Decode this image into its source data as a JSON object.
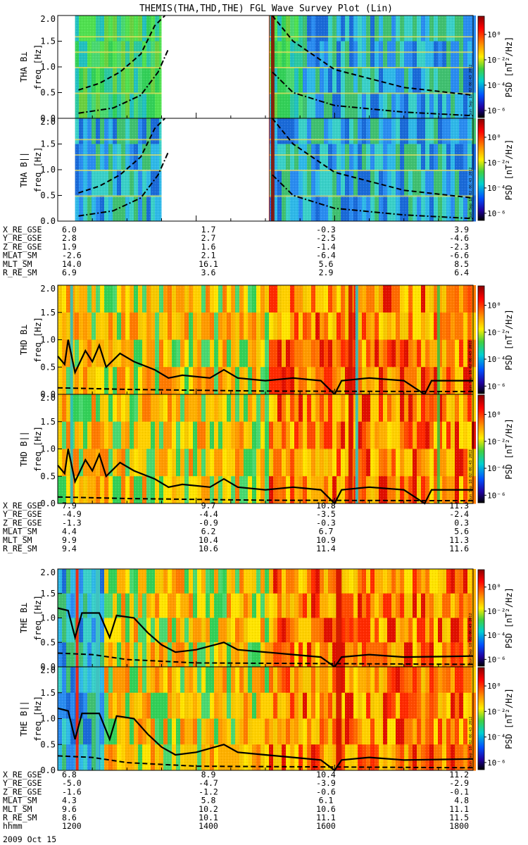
{
  "title": "THEMIS(THA,THD,THE) FGL Wave Survey Plot (Lin)",
  "date_label": "2009 Oct 15",
  "colorbar_label": "PSD [nT²/Hz]",
  "colorbar_ticks": [
    "10⁰",
    "10⁻²",
    "10⁻⁴",
    "10⁻⁶"
  ],
  "stamp": "Sun Sep 18 02:06:43 2012",
  "colors": {
    "cb_top": "#8b0000",
    "cb_mid": "#ffd400",
    "cb_low": "#0000b0",
    "cb_bottom": "#000000"
  },
  "chart_data": [
    {
      "type": "heatmap",
      "name": "THA",
      "panels": [
        {
          "label": "THA B⊥",
          "ylabel": "freq [Hz]"
        },
        {
          "label": "THA B||",
          "ylabel": "freq [Hz]"
        }
      ],
      "yticks": [
        "0.0",
        "0.5",
        "1.0",
        "1.5",
        "2.0"
      ],
      "ylim": [
        0,
        2
      ],
      "xlim": [
        1200,
        1800
      ],
      "data_gaps": [
        [
          1200,
          1225
        ],
        [
          1350,
          1505
        ]
      ],
      "lines": [
        {
          "style": "dashed",
          "points": [
            [
              1230,
              0.55
            ],
            [
              1260,
              0.68
            ],
            [
              1290,
              0.9
            ],
            [
              1320,
              1.25
            ],
            [
              1340,
              1.8
            ],
            [
              1355,
              2.0
            ]
          ]
        },
        {
          "style": "dash-dot",
          "points": [
            [
              1230,
              0.1
            ],
            [
              1280,
              0.2
            ],
            [
              1320,
              0.45
            ],
            [
              1345,
              0.9
            ],
            [
              1360,
              1.35
            ]
          ]
        },
        {
          "style": "dashed",
          "points": [
            [
              1510,
              2.0
            ],
            [
              1540,
              1.5
            ],
            [
              1600,
              0.95
            ],
            [
              1700,
              0.6
            ],
            [
              1800,
              0.45
            ]
          ]
        },
        {
          "style": "dash-dot",
          "points": [
            [
              1510,
              0.9
            ],
            [
              1540,
              0.5
            ],
            [
              1600,
              0.25
            ],
            [
              1700,
              0.12
            ],
            [
              1800,
              0.05
            ]
          ]
        }
      ],
      "ephemeris": [
        {
          "label": "X_RE_GSE",
          "values": [
            "6.0",
            "1.7",
            "-0.3",
            "3.9"
          ]
        },
        {
          "label": "Y_RE_GSE",
          "values": [
            "2.8",
            "2.7",
            "-2.5",
            "-4.6"
          ]
        },
        {
          "label": "Z_RE_GSE",
          "values": [
            "1.9",
            "1.6",
            "-1.4",
            "-2.3"
          ]
        },
        {
          "label": "MLAT_SM",
          "values": [
            "-2.6",
            "2.1",
            "-6.4",
            "-6.6"
          ]
        },
        {
          "label": "MLT_SM",
          "values": [
            "14.0",
            "16.1",
            "5.6",
            "8.5"
          ]
        },
        {
          "label": "R_RE_SM",
          "values": [
            "6.9",
            "3.6",
            "2.9",
            "6.4"
          ]
        }
      ]
    },
    {
      "type": "heatmap",
      "name": "THD",
      "panels": [
        {
          "label": "THD B⊥",
          "ylabel": "freq [Hz]"
        },
        {
          "label": "THD B||",
          "ylabel": "freq [Hz]"
        }
      ],
      "yticks": [
        "0.0",
        "0.5",
        "1.0",
        "1.5",
        "2.0"
      ],
      "ylim": [
        0,
        2
      ],
      "xlim": [
        1200,
        1800
      ],
      "lines": [
        {
          "style": "solid",
          "points": [
            [
              1200,
              0.7
            ],
            [
              1210,
              0.55
            ],
            [
              1215,
              1.0
            ],
            [
              1225,
              0.4
            ],
            [
              1240,
              0.8
            ],
            [
              1250,
              0.6
            ],
            [
              1260,
              0.9
            ],
            [
              1270,
              0.5
            ],
            [
              1290,
              0.75
            ],
            [
              1310,
              0.6
            ],
            [
              1340,
              0.45
            ],
            [
              1360,
              0.3
            ],
            [
              1380,
              0.35
            ],
            [
              1420,
              0.3
            ],
            [
              1440,
              0.45
            ],
            [
              1460,
              0.3
            ],
            [
              1500,
              0.25
            ],
            [
              1540,
              0.3
            ],
            [
              1580,
              0.25
            ],
            [
              1600,
              0.0
            ],
            [
              1610,
              0.25
            ],
            [
              1650,
              0.3
            ],
            [
              1700,
              0.25
            ],
            [
              1730,
              0.0
            ],
            [
              1740,
              0.25
            ],
            [
              1800,
              0.25
            ]
          ]
        },
        {
          "style": "dashed",
          "points": [
            [
              1200,
              0.12
            ],
            [
              1300,
              0.09
            ],
            [
              1500,
              0.06
            ],
            [
              1800,
              0.05
            ]
          ]
        }
      ],
      "ephemeris": [
        {
          "label": "X_RE_GSE",
          "values": [
            "7.9",
            "9.7",
            "10.8",
            "11.3"
          ]
        },
        {
          "label": "Y_RE_GSE",
          "values": [
            "-4.9",
            "-4.4",
            "-3.5",
            "-2.4"
          ]
        },
        {
          "label": "Z_RE_GSE",
          "values": [
            "-1.3",
            "-0.9",
            "-0.3",
            "0.3"
          ]
        },
        {
          "label": "MLAT_SM",
          "values": [
            "4.4",
            "6.2",
            "6.7",
            "5.6"
          ]
        },
        {
          "label": "MLT_SM",
          "values": [
            "9.9",
            "10.4",
            "10.9",
            "11.3"
          ]
        },
        {
          "label": "R_RE_SM",
          "values": [
            "9.4",
            "10.6",
            "11.4",
            "11.6"
          ]
        }
      ]
    },
    {
      "type": "heatmap",
      "name": "THE",
      "panels": [
        {
          "label": "THE B⊥",
          "ylabel": "freq [Hz]"
        },
        {
          "label": "THE B||",
          "ylabel": "freq [Hz]"
        }
      ],
      "yticks": [
        "0.0",
        "0.5",
        "1.0",
        "1.5",
        "2.0"
      ],
      "ylim": [
        0,
        2
      ],
      "xlim": [
        1200,
        1800
      ],
      "lines": [
        {
          "style": "solid",
          "points": [
            [
              1200,
              1.2
            ],
            [
              1215,
              1.15
            ],
            [
              1225,
              0.6
            ],
            [
              1235,
              1.1
            ],
            [
              1260,
              1.1
            ],
            [
              1275,
              0.6
            ],
            [
              1285,
              1.05
            ],
            [
              1310,
              1.0
            ],
            [
              1330,
              0.7
            ],
            [
              1350,
              0.45
            ],
            [
              1370,
              0.3
            ],
            [
              1400,
              0.35
            ],
            [
              1440,
              0.5
            ],
            [
              1460,
              0.35
            ],
            [
              1500,
              0.3
            ],
            [
              1540,
              0.25
            ],
            [
              1580,
              0.2
            ],
            [
              1600,
              0.0
            ],
            [
              1610,
              0.2
            ],
            [
              1650,
              0.25
            ],
            [
              1700,
              0.2
            ],
            [
              1800,
              0.22
            ]
          ]
        },
        {
          "style": "dashed",
          "points": [
            [
              1200,
              0.28
            ],
            [
              1250,
              0.25
            ],
            [
              1300,
              0.15
            ],
            [
              1400,
              0.08
            ],
            [
              1800,
              0.05
            ]
          ]
        }
      ],
      "ephemeris": [
        {
          "label": "X_RE_GSE",
          "values": [
            "6.8",
            "8.9",
            "10.4",
            "11.2"
          ]
        },
        {
          "label": "Y_RE_GSE",
          "values": [
            "-5.0",
            "-4.7",
            "-3.9",
            "-2.9"
          ]
        },
        {
          "label": "Z_RE_GSE",
          "values": [
            "-1.6",
            "-1.2",
            "-0.6",
            "-0.1"
          ]
        },
        {
          "label": "MLAT_SM",
          "values": [
            "4.3",
            "5.8",
            "6.1",
            "4.8"
          ]
        },
        {
          "label": "MLT_SM",
          "values": [
            "9.6",
            "10.2",
            "10.6",
            "11.1"
          ]
        },
        {
          "label": "R_RE_SM",
          "values": [
            "8.6",
            "10.1",
            "11.1",
            "11.5"
          ]
        },
        {
          "label": "hhmm",
          "values": [
            "1200",
            "1400",
            "1600",
            "1800"
          ]
        }
      ]
    }
  ]
}
